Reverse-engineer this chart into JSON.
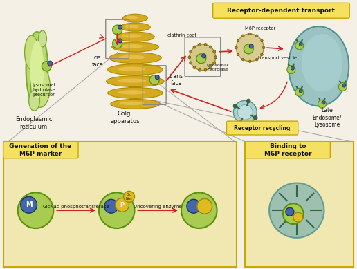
{
  "bg_color": "#f5f0e5",
  "golgi_color": "#d4aa20",
  "golgi_edge": "#b08800",
  "er_green": "#b8d870",
  "er_edge": "#7aaa30",
  "enzyme_green": "#a8cc50",
  "enzyme_edge": "#5a9010",
  "blue_marker": "#4466aa",
  "yellow_marker": "#ddbb22",
  "yellow_marker_edge": "#998800",
  "lysosome_color": "#8abcbc",
  "lysosome_edge": "#3a8888",
  "vesicle_color": "#d8c888",
  "vesicle_edge": "#aa8822",
  "recycling_color": "#aacccc",
  "recycling_edge": "#448888",
  "receptor_green": "#336644",
  "arrow_color": "#cc2222",
  "box_label_bg": "#f5e060",
  "box_label_edge": "#c8a800",
  "bottom_box_bg": "#f0e8b0",
  "bottom_box_edge": "#c8a800",
  "line_color": "#aaaaaa",
  "label_receptor_transport": "Receptor-dependent transport",
  "label_receptor_recycling": "Receptor recycling",
  "label_generation": "Generation of the\nM6P marker",
  "label_binding": "Binding to\nM6P receptor",
  "label_ER": "Endoplasmic\nreticulum",
  "label_golgi": "Golgi\napparatus",
  "label_clathrin": "clathrin coat",
  "label_lysosomal_hydrolase": "lysosomal\nhydrolase",
  "label_transport_vesicle": "transport vesicle",
  "label_M6P_receptor": "M6P receptor",
  "label_cis": "cis\nface",
  "label_trans": "trans\nface",
  "label_late_endosome": "Late\nEndosome/\nLysosome",
  "label_hydrolase_precursor": "lysosomal\nhydrolase\nprecursor",
  "label_glcnac": "GlcNac-phosphotransferase",
  "label_uncovering": "Uncovering enzyme"
}
